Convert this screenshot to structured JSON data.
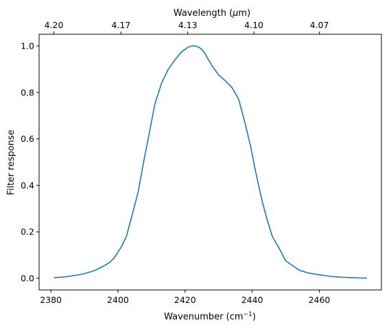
{
  "chart_data": {
    "type": "line",
    "title": "",
    "xlabel": "Wavenumber (cm",
    "xlabel_sup": "−1",
    "xlabel_suffix": ")",
    "ylabel": "Filter response",
    "top_xlabel": "Wavelength (μm)",
    "top_xlabel_parts": {
      "pre": "Wavelength (",
      "mu": "μ",
      "post": "m)"
    },
    "xlim": [
      2376.5,
      2478.5
    ],
    "ylim": [
      -0.05,
      1.05
    ],
    "grid": false,
    "xticks": [
      2380,
      2400,
      2420,
      2440,
      2460
    ],
    "xtick_labels": [
      "2380",
      "2400",
      "2420",
      "2440",
      "2460"
    ],
    "yticks": [
      0.0,
      0.2,
      0.4,
      0.6,
      0.8,
      1.0
    ],
    "ytick_labels": [
      "0.0",
      "0.2",
      "0.4",
      "0.6",
      "0.8",
      "1.0"
    ],
    "top_xticks": [
      2380.9,
      2400.9,
      2420.8,
      2440.5,
      2460.0
    ],
    "top_xtick_labels": [
      "4.20",
      "4.17",
      "4.13",
      "4.10",
      "4.07"
    ],
    "series": [
      {
        "color": "#1f77b4",
        "x": [
          2381,
          2384,
          2387,
          2390,
          2393,
          2396,
          2397.5,
          2399,
          2401,
          2402.5,
          2404,
          2406,
          2407.5,
          2409,
          2411,
          2413,
          2415,
          2417,
          2419,
          2420,
          2421,
          2422,
          2423,
          2424,
          2425,
          2426,
          2427,
          2428,
          2430,
          2432,
          2434,
          2436,
          2438,
          2439.5,
          2441,
          2443,
          2444.5,
          2446,
          2448,
          2450,
          2452,
          2454,
          2457,
          2460,
          2463,
          2466,
          2469,
          2471,
          2474
        ],
        "y": [
          0.003,
          0.006,
          0.012,
          0.02,
          0.033,
          0.055,
          0.068,
          0.09,
          0.135,
          0.18,
          0.26,
          0.37,
          0.49,
          0.6,
          0.75,
          0.84,
          0.9,
          0.94,
          0.975,
          0.985,
          0.995,
          1.0,
          1.0,
          0.995,
          0.985,
          0.965,
          0.94,
          0.915,
          0.875,
          0.85,
          0.82,
          0.77,
          0.66,
          0.57,
          0.46,
          0.33,
          0.25,
          0.18,
          0.13,
          0.075,
          0.055,
          0.035,
          0.022,
          0.015,
          0.009,
          0.005,
          0.003,
          0.002,
          0.001
        ]
      }
    ]
  }
}
